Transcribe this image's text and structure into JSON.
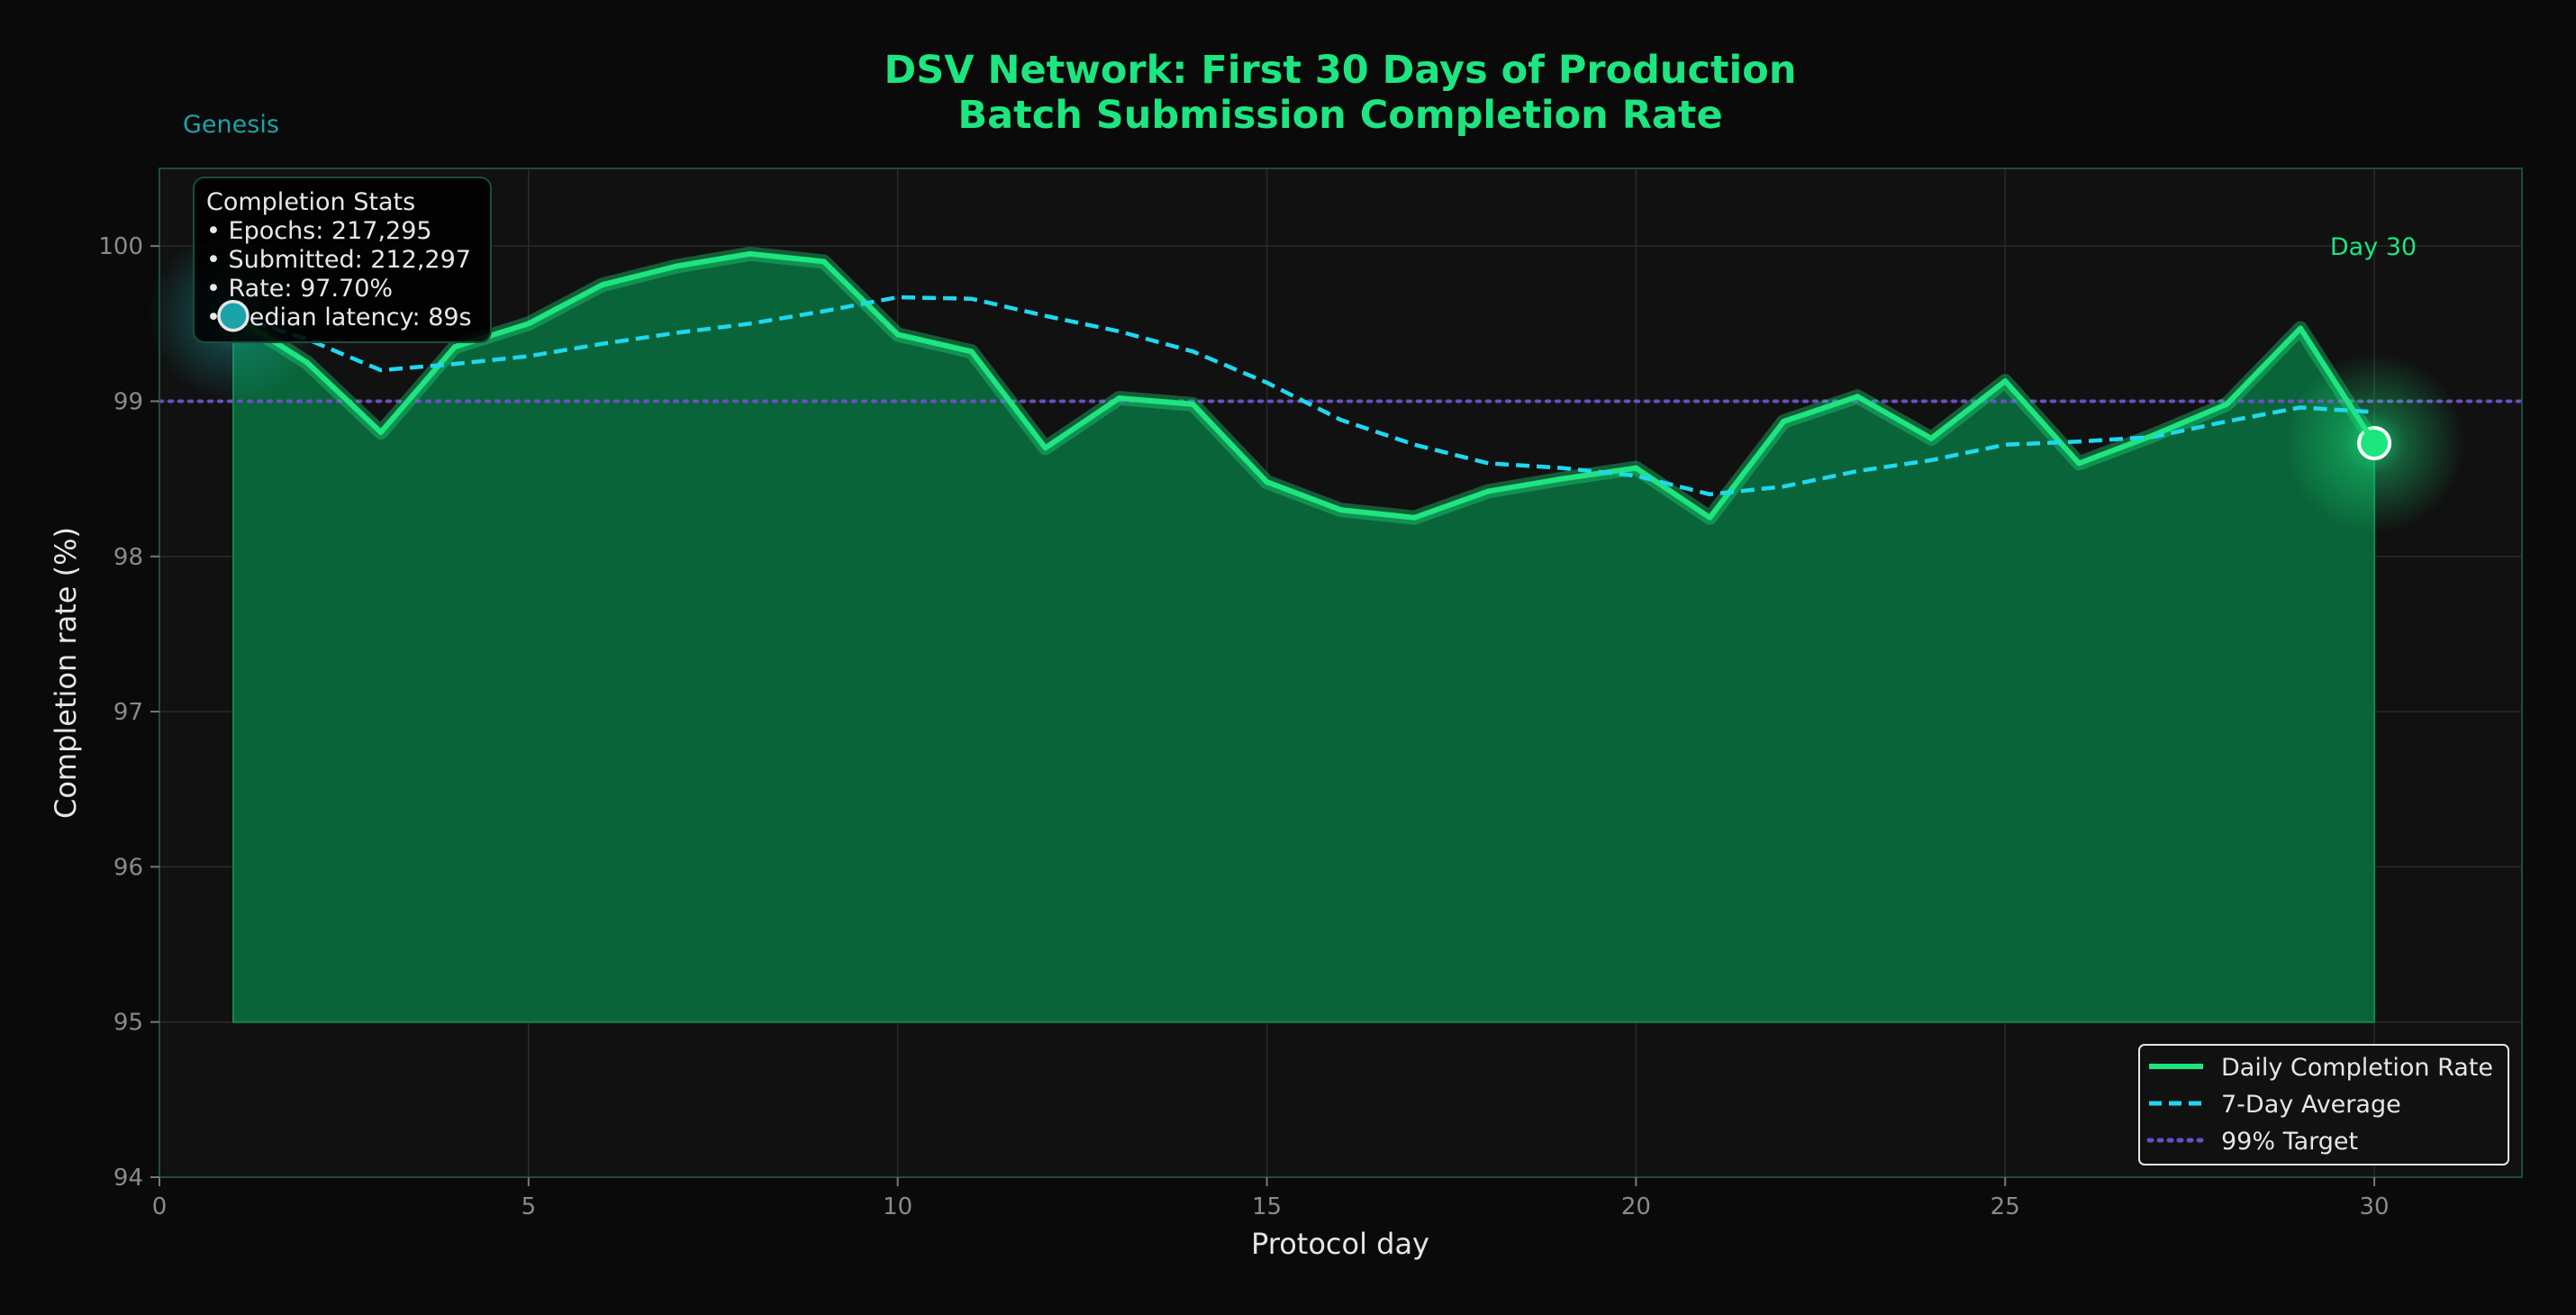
{
  "chart_data": {
    "type": "line",
    "title_line1": "DSV Network: First 30 Days of Production",
    "title_line2": "Batch Submission Completion Rate",
    "xlabel": "Protocol day",
    "ylabel": "Completion rate (%)",
    "xlim": [
      0,
      32
    ],
    "ylim": [
      94,
      100.5
    ],
    "x_ticks": [
      0,
      5,
      10,
      15,
      20,
      25,
      30
    ],
    "y_ticks": [
      94,
      95,
      96,
      97,
      98,
      99,
      100
    ],
    "grid": true,
    "fill_baseline": 95,
    "x": [
      1,
      2,
      3,
      4,
      5,
      6,
      7,
      8,
      9,
      10,
      11,
      12,
      13,
      14,
      15,
      16,
      17,
      18,
      19,
      20,
      21,
      22,
      23,
      24,
      25,
      26,
      27,
      28,
      29,
      30
    ],
    "series": [
      {
        "name": "Daily Completion Rate",
        "style": "solid",
        "color": "#1de57f",
        "values": [
          99.55,
          99.25,
          98.8,
          99.35,
          99.5,
          99.75,
          99.87,
          99.95,
          99.9,
          99.43,
          99.32,
          98.7,
          99.02,
          98.98,
          98.48,
          98.3,
          98.25,
          98.42,
          98.5,
          98.57,
          98.25,
          98.87,
          99.03,
          98.76,
          99.13,
          98.6,
          98.78,
          98.98,
          99.47,
          98.73
        ]
      },
      {
        "name": "7-Day Average",
        "style": "dashed",
        "color": "#1fd8f0",
        "values": [
          99.55,
          99.4,
          99.2,
          99.24,
          99.29,
          99.37,
          99.44,
          99.5,
          99.58,
          99.67,
          99.66,
          99.55,
          99.45,
          99.32,
          99.12,
          98.88,
          98.72,
          98.6,
          98.57,
          98.52,
          98.4,
          98.45,
          98.55,
          98.62,
          98.72,
          98.74,
          98.77,
          98.87,
          98.96,
          98.93
        ]
      }
    ],
    "target": {
      "name": "99% Target",
      "value": 99,
      "color": "#6a4fc4"
    },
    "legend": {
      "placement": "bottom-right"
    },
    "annotations": {
      "start_label": "Genesis",
      "end_label": "Day 30",
      "start_color": "#1aa3a8",
      "end_color": "#1de57f"
    },
    "stats_box": {
      "title": "Completion Stats",
      "lines": [
        "• Epochs: 217,295",
        "• Submitted: 212,297",
        "• Rate: 97.70%",
        "• Median latency: 89s"
      ]
    }
  }
}
